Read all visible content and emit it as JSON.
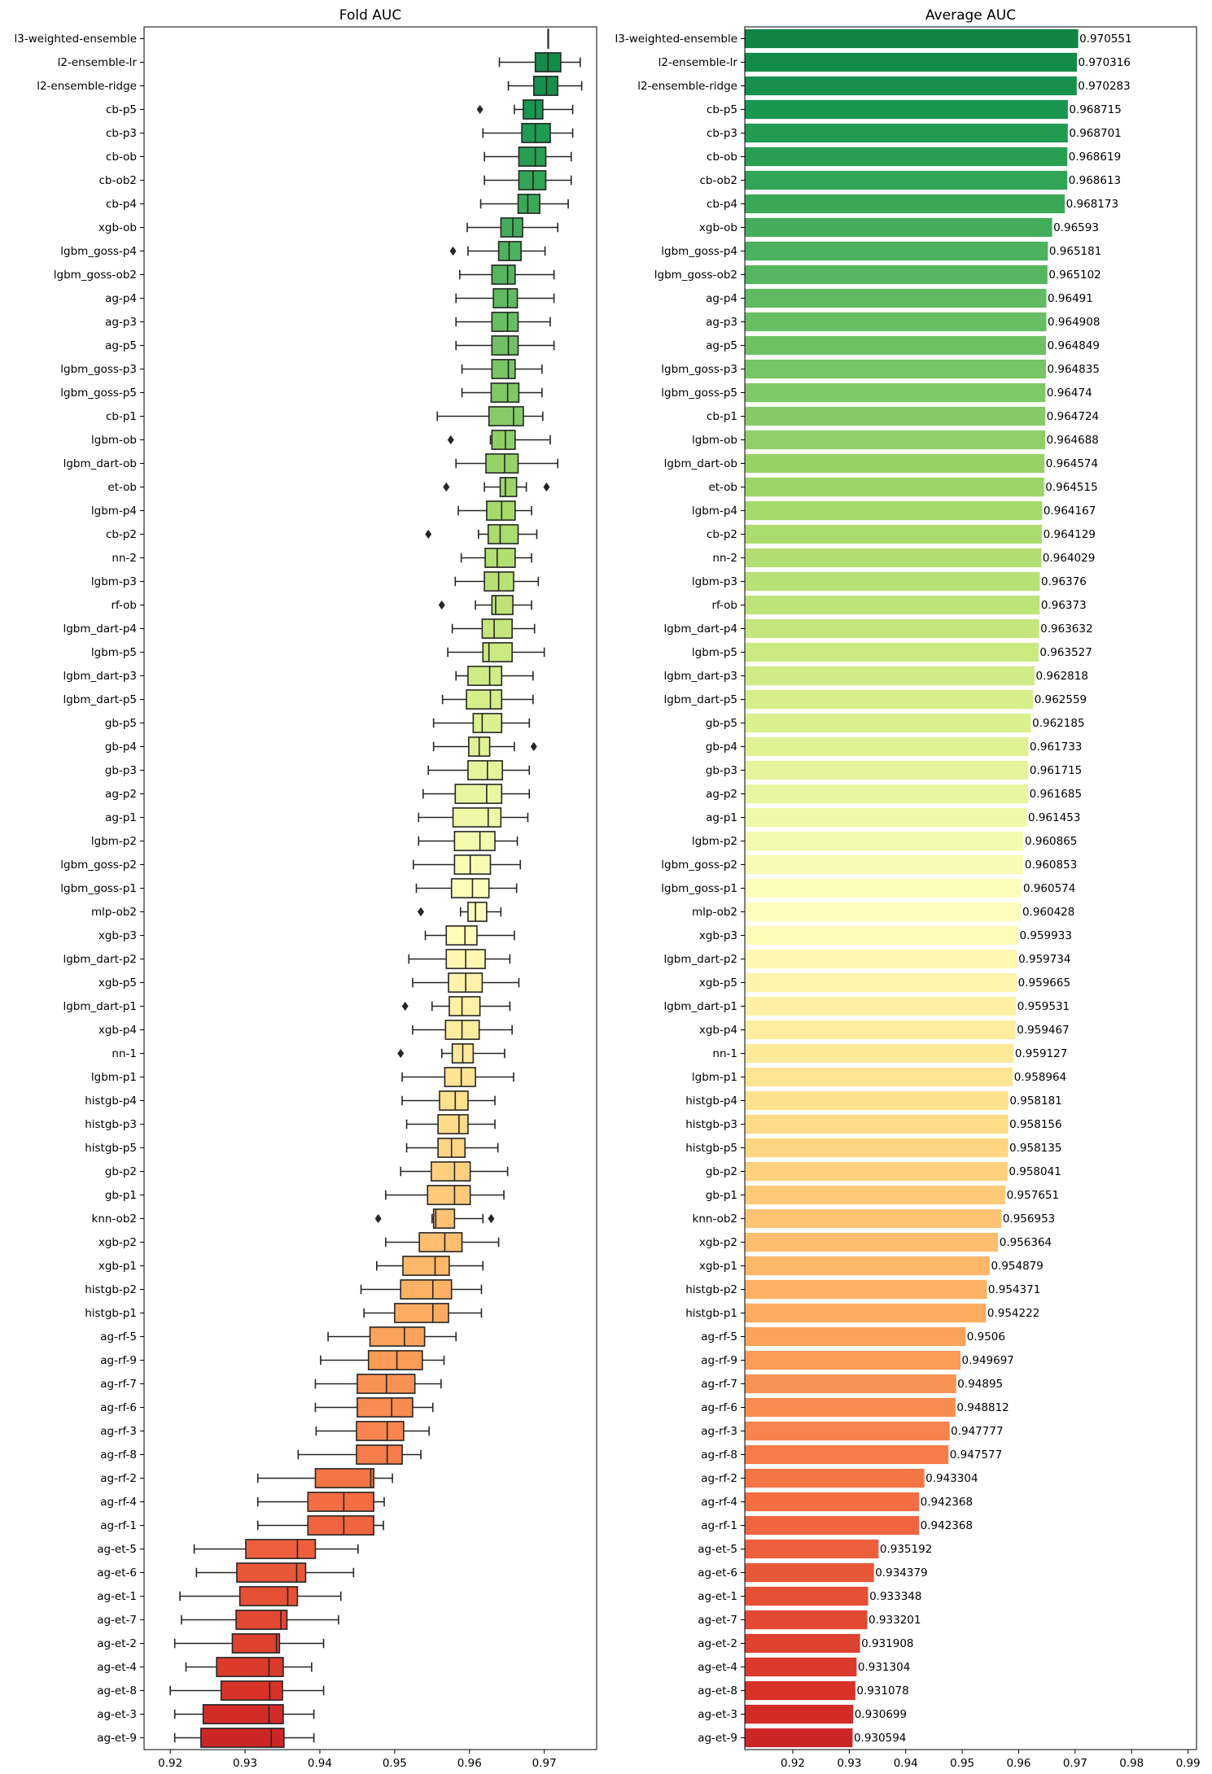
{
  "chart_data": [
    {
      "type": "box",
      "title": "Fold AUC",
      "xlim": [
        0.9165,
        0.977
      ],
      "xticks": [
        0.92,
        0.93,
        0.94,
        0.95,
        0.96,
        0.97
      ],
      "xtick_labels": [
        "0.92",
        "0.93",
        "0.94",
        "0.95",
        "0.96",
        "0.97"
      ],
      "categories": [
        "l3-weighted-ensemble",
        "l2-ensemble-lr",
        "l2-ensemble-ridge",
        "cb-p5",
        "cb-p3",
        "cb-ob",
        "cb-ob2",
        "cb-p4",
        "xgb-ob",
        "lgbm_goss-p4",
        "lgbm_goss-ob2",
        "ag-p4",
        "ag-p3",
        "ag-p5",
        "lgbm_goss-p3",
        "lgbm_goss-p5",
        "cb-p1",
        "lgbm-ob",
        "lgbm_dart-ob",
        "et-ob",
        "lgbm-p4",
        "cb-p2",
        "nn-2",
        "lgbm-p3",
        "rf-ob",
        "lgbm_dart-p4",
        "lgbm-p5",
        "lgbm_dart-p3",
        "lgbm_dart-p5",
        "gb-p5",
        "gb-p4",
        "gb-p3",
        "ag-p2",
        "ag-p1",
        "lgbm-p2",
        "lgbm_goss-p2",
        "lgbm_goss-p1",
        "mlp-ob2",
        "xgb-p3",
        "lgbm_dart-p2",
        "xgb-p5",
        "lgbm_dart-p1",
        "xgb-p4",
        "nn-1",
        "lgbm-p1",
        "histgb-p4",
        "histgb-p3",
        "histgb-p5",
        "gb-p2",
        "gb-p1",
        "knn-ob2",
        "xgb-p2",
        "xgb-p1",
        "histgb-p2",
        "histgb-p1",
        "ag-rf-5",
        "ag-rf-9",
        "ag-rf-7",
        "ag-rf-6",
        "ag-rf-3",
        "ag-rf-8",
        "ag-rf-2",
        "ag-rf-4",
        "ag-rf-1",
        "ag-et-5",
        "ag-et-6",
        "ag-et-1",
        "ag-et-7",
        "ag-et-2",
        "ag-et-4",
        "ag-et-8",
        "ag-et-3",
        "ag-et-9"
      ],
      "boxes": [
        [
          0.9705,
          0.9705,
          0.9705,
          0.9705,
          0.9705
        ],
        [
          0.964,
          0.9688,
          0.9705,
          0.9722,
          0.9748
        ],
        [
          0.9652,
          0.9686,
          0.9703,
          0.9718,
          0.975
        ],
        [
          0.966,
          0.9672,
          0.9688,
          0.9698,
          0.9738
        ],
        [
          0.9618,
          0.967,
          0.9688,
          0.9708,
          0.9738
        ],
        [
          0.962,
          0.9666,
          0.9688,
          0.9702,
          0.9736
        ],
        [
          0.962,
          0.9666,
          0.9685,
          0.9702,
          0.9736
        ],
        [
          0.9615,
          0.9665,
          0.9678,
          0.9694,
          0.9732
        ],
        [
          0.9597,
          0.9642,
          0.9658,
          0.9671,
          0.9718
        ],
        [
          0.9598,
          0.9639,
          0.9653,
          0.9669,
          0.9701
        ],
        [
          0.9587,
          0.963,
          0.9651,
          0.9661,
          0.9713
        ],
        [
          0.9582,
          0.9632,
          0.9651,
          0.9664,
          0.9713
        ],
        [
          0.9582,
          0.963,
          0.9651,
          0.9665,
          0.9708
        ],
        [
          0.9582,
          0.963,
          0.9652,
          0.9665,
          0.9713
        ],
        [
          0.959,
          0.963,
          0.9652,
          0.9661,
          0.9697
        ],
        [
          0.959,
          0.9629,
          0.9651,
          0.9666,
          0.9697
        ],
        [
          0.9557,
          0.9626,
          0.9659,
          0.9672,
          0.9698
        ],
        [
          0.9628,
          0.963,
          0.9648,
          0.9661,
          0.9708
        ],
        [
          0.9582,
          0.9622,
          0.9647,
          0.9665,
          0.9718
        ],
        [
          0.962,
          0.9641,
          0.9648,
          0.9663,
          0.9676
        ],
        [
          0.9585,
          0.9623,
          0.9643,
          0.9661,
          0.9683
        ],
        [
          0.9612,
          0.9625,
          0.9641,
          0.9665,
          0.969
        ],
        [
          0.9589,
          0.9621,
          0.9637,
          0.9661,
          0.9683
        ],
        [
          0.9581,
          0.962,
          0.9639,
          0.9659,
          0.9692
        ],
        [
          0.9608,
          0.963,
          0.9635,
          0.9658,
          0.9683
        ],
        [
          0.9577,
          0.9617,
          0.9633,
          0.9657,
          0.9687
        ],
        [
          0.9571,
          0.9618,
          0.9626,
          0.9657,
          0.97
        ],
        [
          0.9582,
          0.9598,
          0.9627,
          0.9643,
          0.9685
        ],
        [
          0.9564,
          0.9596,
          0.9628,
          0.9643,
          0.9685
        ],
        [
          0.9552,
          0.9605,
          0.9617,
          0.9643,
          0.968
        ],
        [
          0.9552,
          0.9599,
          0.9613,
          0.9627,
          0.966
        ],
        [
          0.9545,
          0.9598,
          0.9624,
          0.9644,
          0.968
        ],
        [
          0.9538,
          0.9581,
          0.9623,
          0.9643,
          0.968
        ],
        [
          0.9532,
          0.9578,
          0.9625,
          0.9642,
          0.9678
        ],
        [
          0.9532,
          0.958,
          0.9614,
          0.9634,
          0.9664
        ],
        [
          0.9525,
          0.958,
          0.9601,
          0.9628,
          0.9668
        ],
        [
          0.9529,
          0.9576,
          0.9604,
          0.9626,
          0.9663
        ],
        [
          0.9588,
          0.9598,
          0.9608,
          0.9623,
          0.9642
        ],
        [
          0.9541,
          0.9569,
          0.9594,
          0.961,
          0.966
        ],
        [
          0.9519,
          0.9569,
          0.9595,
          0.9621,
          0.9654
        ],
        [
          0.9524,
          0.9572,
          0.9595,
          0.9617,
          0.9666
        ],
        [
          0.955,
          0.9573,
          0.959,
          0.9614,
          0.9654
        ],
        [
          0.9524,
          0.9568,
          0.959,
          0.9613,
          0.9657
        ],
        [
          0.9563,
          0.9577,
          0.9591,
          0.9605,
          0.9647
        ],
        [
          0.951,
          0.9567,
          0.9589,
          0.9608,
          0.9659
        ],
        [
          0.951,
          0.956,
          0.9581,
          0.9598,
          0.9634
        ],
        [
          0.9516,
          0.9558,
          0.9586,
          0.9598,
          0.9634
        ],
        [
          0.9516,
          0.9558,
          0.9576,
          0.9594,
          0.9638
        ],
        [
          0.9508,
          0.9549,
          0.958,
          0.9601,
          0.9651
        ],
        [
          0.9488,
          0.9544,
          0.958,
          0.9601,
          0.9646
        ],
        [
          0.955,
          0.9552,
          0.9555,
          0.958,
          0.9618
        ],
        [
          0.9488,
          0.9533,
          0.9567,
          0.959,
          0.9639
        ],
        [
          0.9476,
          0.9511,
          0.9554,
          0.9573,
          0.9618
        ],
        [
          0.9455,
          0.9508,
          0.9551,
          0.9576,
          0.9616
        ],
        [
          0.9459,
          0.95,
          0.9551,
          0.9572,
          0.9616
        ],
        [
          0.9411,
          0.9467,
          0.9513,
          0.954,
          0.9582
        ],
        [
          0.9401,
          0.9465,
          0.9503,
          0.9537,
          0.9566
        ],
        [
          0.9394,
          0.945,
          0.9489,
          0.9527,
          0.9562
        ],
        [
          0.9394,
          0.945,
          0.9496,
          0.9524,
          0.9551
        ],
        [
          0.9395,
          0.9449,
          0.949,
          0.9512,
          0.9546
        ],
        [
          0.9371,
          0.9449,
          0.949,
          0.951,
          0.9535
        ],
        [
          0.9317,
          0.9394,
          0.9468,
          0.9472,
          0.9497
        ],
        [
          0.9317,
          0.9384,
          0.9432,
          0.9472,
          0.9486
        ],
        [
          0.9317,
          0.9384,
          0.9432,
          0.9472,
          0.9485
        ],
        [
          0.9232,
          0.9301,
          0.937,
          0.9394,
          0.9451
        ],
        [
          0.9235,
          0.9289,
          0.9369,
          0.9381,
          0.9445
        ],
        [
          0.9213,
          0.9293,
          0.9357,
          0.937,
          0.9428
        ],
        [
          0.9215,
          0.9288,
          0.9348,
          0.9356,
          0.9425
        ],
        [
          0.9206,
          0.9283,
          0.9342,
          0.9346,
          0.9405
        ],
        [
          0.9221,
          0.9262,
          0.9332,
          0.9351,
          0.9389
        ],
        [
          0.92,
          0.9268,
          0.9333,
          0.935,
          0.9405
        ],
        [
          0.9206,
          0.9244,
          0.9332,
          0.9351,
          0.9392
        ],
        [
          0.9206,
          0.9241,
          0.9335,
          0.9352,
          0.9392
        ]
      ],
      "outliers": [
        [],
        [],
        [],
        [
          0.9614
        ],
        [],
        [],
        [],
        [],
        [],
        [
          0.9578
        ],
        [],
        [],
        [],
        [],
        [],
        [],
        [],
        [
          0.9575
        ],
        [],
        [
          0.9569,
          0.9703
        ],
        [],
        [
          0.9545
        ],
        [],
        [],
        [
          0.9563
        ],
        [],
        [],
        [],
        [],
        [],
        [
          0.9686
        ],
        [],
        [],
        [],
        [],
        [],
        [],
        [
          0.9535
        ],
        [],
        [],
        [],
        [
          0.9514
        ],
        [],
        [
          0.9508
        ],
        [],
        [],
        [],
        [],
        [],
        [],
        [
          0.9478,
          0.9629
        ],
        [],
        [],
        [],
        [],
        [],
        [],
        [],
        [],
        [],
        [],
        [],
        [],
        [],
        [],
        [],
        [],
        [],
        [],
        [],
        [],
        [],
        []
      ]
    },
    {
      "type": "bar",
      "orientation": "horizontal",
      "title": "Average AUC",
      "xlim": [
        0.9115,
        0.9915
      ],
      "xticks": [
        0.92,
        0.93,
        0.94,
        0.95,
        0.96,
        0.97,
        0.98,
        0.99
      ],
      "xtick_labels": [
        "0.92",
        "0.93",
        "0.94",
        "0.95",
        "0.96",
        "0.97",
        "0.98",
        "0.99"
      ],
      "values": [
        0.970551,
        0.970316,
        0.970283,
        0.968715,
        0.968701,
        0.968619,
        0.968613,
        0.968173,
        0.96593,
        0.965181,
        0.965102,
        0.96491,
        0.964908,
        0.964849,
        0.964835,
        0.96474,
        0.964724,
        0.964688,
        0.964574,
        0.964515,
        0.964167,
        0.964129,
        0.964029,
        0.96376,
        0.96373,
        0.963632,
        0.963527,
        0.962818,
        0.962559,
        0.962185,
        0.961733,
        0.961715,
        0.961685,
        0.961453,
        0.960865,
        0.960853,
        0.960574,
        0.960428,
        0.959933,
        0.959734,
        0.959665,
        0.959531,
        0.959467,
        0.959127,
        0.958964,
        0.958181,
        0.958156,
        0.958135,
        0.958041,
        0.957651,
        0.956953,
        0.956364,
        0.954879,
        0.954371,
        0.954222,
        0.9506,
        0.949697,
        0.94895,
        0.948812,
        0.947777,
        0.947577,
        0.943304,
        0.942368,
        0.942368,
        0.935192,
        0.934379,
        0.933348,
        0.933201,
        0.931908,
        0.931304,
        0.931078,
        0.930699,
        0.930594
      ],
      "value_labels": [
        "0.970551",
        "0.970316",
        "0.970283",
        "0.968715",
        "0.968701",
        "0.968619",
        "0.968613",
        "0.968173",
        "0.96593",
        "0.965181",
        "0.965102",
        "0.96491",
        "0.964908",
        "0.964849",
        "0.964835",
        "0.96474",
        "0.964724",
        "0.964688",
        "0.964574",
        "0.964515",
        "0.964167",
        "0.964129",
        "0.964029",
        "0.96376",
        "0.96373",
        "0.963632",
        "0.963527",
        "0.962818",
        "0.962559",
        "0.962185",
        "0.961733",
        "0.961715",
        "0.961685",
        "0.961453",
        "0.960865",
        "0.960853",
        "0.960574",
        "0.960428",
        "0.959933",
        "0.959734",
        "0.959665",
        "0.959531",
        "0.959467",
        "0.959127",
        "0.958964",
        "0.958181",
        "0.958156",
        "0.958135",
        "0.958041",
        "0.957651",
        "0.956953",
        "0.956364",
        "0.954879",
        "0.954371",
        "0.954222",
        "0.9506",
        "0.949697",
        "0.94895",
        "0.948812",
        "0.947777",
        "0.947577",
        "0.943304",
        "0.942368",
        "0.942368",
        "0.935192",
        "0.934379",
        "0.933348",
        "0.933201",
        "0.931908",
        "0.931304",
        "0.931078",
        "0.930699",
        "0.930594"
      ]
    }
  ],
  "colors": {
    "palette": "RdYlGn",
    "top": "#0b6332",
    "bottom": "#a01733",
    "line": "#262626"
  }
}
